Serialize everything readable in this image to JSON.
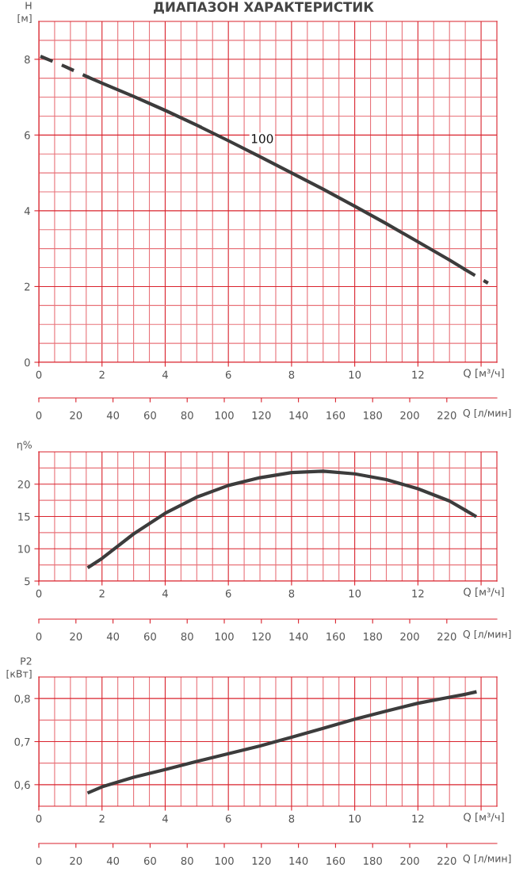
{
  "chart_data": [
    {
      "type": "line",
      "title": "ДИАПАЗОН ХАРАКТЕРИСТИК",
      "ylabel": "H\n[м]",
      "xlabel": "Q [м³/ч]",
      "x2label": "Q [л/мин]",
      "xlim": [
        0,
        14.5
      ],
      "xticks": [
        0,
        {
          "value": 0.5,
          "label": null
        },
        {
          "value": 1,
          "label": null
        },
        {
          "value": 1.5,
          "label": null
        },
        2,
        {
          "value": 2.5,
          "label": null
        },
        {
          "value": 3,
          "label": null
        },
        {
          "value": 3.5,
          "label": null
        },
        4,
        {
          "value": 4.5,
          "label": null
        },
        {
          "value": 5,
          "label": null
        },
        {
          "value": 5.5,
          "label": null
        },
        6,
        {
          "value": 6.5,
          "label": null
        },
        {
          "value": 7,
          "label": null
        },
        {
          "value": 7.5,
          "label": null
        },
        8,
        {
          "value": 8.5,
          "label": null
        },
        {
          "value": 9,
          "label": null
        },
        {
          "value": 9.5,
          "label": null
        },
        10,
        {
          "value": 10.5,
          "label": null
        },
        {
          "value": 11,
          "label": null
        },
        {
          "value": 11.5,
          "label": null
        },
        12,
        {
          "value": 12.5,
          "label": null
        },
        {
          "value": 13,
          "label": null
        },
        {
          "value": 13.5,
          "label": null
        },
        {
          "value": 14,
          "label": null
        }
      ],
      "x2lim": [
        0,
        247
      ],
      "x2ticks": [
        0,
        20,
        40,
        60,
        80,
        100,
        120,
        140,
        160,
        180,
        200,
        220
      ],
      "ylim": [
        0,
        9
      ],
      "yticks": [
        0,
        {
          "value": 0.5,
          "label": null
        },
        {
          "value": 1,
          "label": null
        },
        {
          "value": 1.5,
          "label": null
        },
        2,
        {
          "value": 2.5,
          "label": null
        },
        {
          "value": 3,
          "label": null
        },
        {
          "value": 3.5,
          "label": null
        },
        4,
        {
          "value": 4.5,
          "label": null
        },
        {
          "value": 5,
          "label": null
        },
        {
          "value": 5.5,
          "label": null
        },
        6,
        {
          "value": 6.5,
          "label": null
        },
        {
          "value": 7,
          "label": null
        },
        {
          "value": 7.5,
          "label": null
        },
        8,
        {
          "value": 8.5,
          "label": null
        }
      ],
      "grid": true,
      "series": [
        {
          "color": "#3c3c3c",
          "line_style": "dashed",
          "x": [
            0.05,
            0.8,
            1.58
          ],
          "values": [
            8.08,
            7.82,
            7.52
          ]
        },
        {
          "name": "100",
          "color": "#3c3c3c",
          "line_style": "solid",
          "x": [
            1.58,
            2,
            3,
            4,
            5,
            6,
            7,
            8,
            9,
            10,
            11,
            12,
            13,
            13.45
          ],
          "values": [
            7.52,
            7.37,
            7.02,
            6.65,
            6.26,
            5.85,
            5.43,
            5.0,
            4.57,
            4.12,
            3.66,
            3.18,
            2.7,
            2.47
          ]
        },
        {
          "color": "#3c3c3c",
          "line_style": "dashed",
          "x": [
            13.45,
            13.85,
            14.22
          ],
          "values": [
            2.47,
            2.27,
            2.09
          ]
        }
      ]
    },
    {
      "type": "line",
      "ylabel": "η%",
      "xlabel": "Q [м³/ч]",
      "x2label": "Q [л/мин]",
      "xlim": [
        0,
        14.5
      ],
      "xticks": [
        0,
        {
          "value": 0.5,
          "label": null
        },
        {
          "value": 1,
          "label": null
        },
        {
          "value": 1.5,
          "label": null
        },
        2,
        {
          "value": 2.5,
          "label": null
        },
        {
          "value": 3,
          "label": null
        },
        {
          "value": 3.5,
          "label": null
        },
        4,
        {
          "value": 4.5,
          "label": null
        },
        {
          "value": 5,
          "label": null
        },
        {
          "value": 5.5,
          "label": null
        },
        6,
        {
          "value": 6.5,
          "label": null
        },
        {
          "value": 7,
          "label": null
        },
        {
          "value": 7.5,
          "label": null
        },
        8,
        {
          "value": 8.5,
          "label": null
        },
        {
          "value": 9,
          "label": null
        },
        {
          "value": 9.5,
          "label": null
        },
        10,
        {
          "value": 10.5,
          "label": null
        },
        {
          "value": 11,
          "label": null
        },
        {
          "value": 11.5,
          "label": null
        },
        12,
        {
          "value": 12.5,
          "label": null
        },
        {
          "value": 13,
          "label": null
        },
        {
          "value": 13.5,
          "label": null
        },
        {
          "value": 14,
          "label": null
        }
      ],
      "x2lim": [
        0,
        247
      ],
      "x2ticks": [
        0,
        20,
        40,
        60,
        80,
        100,
        120,
        140,
        160,
        180,
        200,
        220
      ],
      "ylim": [
        5,
        25
      ],
      "yticks": [
        5,
        {
          "value": 7.5,
          "label": null
        },
        10,
        {
          "value": 12.5,
          "label": null
        },
        15,
        {
          "value": 17.5,
          "label": null
        },
        20,
        {
          "value": 22.5,
          "label": null
        }
      ],
      "grid": true,
      "series": [
        {
          "color": "#3c3c3c",
          "line_style": "solid",
          "x": [
            1.59,
            2,
            3,
            4,
            5,
            6,
            7,
            8,
            9,
            10,
            11,
            12,
            13,
            13.49
          ],
          "values": [
            7.2,
            8.5,
            12.3,
            15.5,
            18.0,
            19.8,
            21.0,
            21.8,
            22.0,
            21.6,
            20.7,
            19.3,
            17.4,
            16.0
          ]
        },
        {
          "color": "#3c3c3c",
          "line_style": "dashed",
          "x": [
            13.49,
            13.94
          ],
          "values": [
            16.0,
            14.7
          ]
        }
      ]
    },
    {
      "type": "line",
      "ylabel": "P2\n[кВт]",
      "xlabel": "Q [м³/ч]",
      "x2label": "Q [л/мин]",
      "xlim": [
        0,
        14.5
      ],
      "xticks": [
        0,
        {
          "value": 0.5,
          "label": null
        },
        {
          "value": 1,
          "label": null
        },
        {
          "value": 1.5,
          "label": null
        },
        2,
        {
          "value": 2.5,
          "label": null
        },
        {
          "value": 3,
          "label": null
        },
        {
          "value": 3.5,
          "label": null
        },
        4,
        {
          "value": 4.5,
          "label": null
        },
        {
          "value": 5,
          "label": null
        },
        {
          "value": 5.5,
          "label": null
        },
        6,
        {
          "value": 6.5,
          "label": null
        },
        {
          "value": 7,
          "label": null
        },
        {
          "value": 7.5,
          "label": null
        },
        8,
        {
          "value": 8.5,
          "label": null
        },
        {
          "value": 9,
          "label": null
        },
        {
          "value": 9.5,
          "label": null
        },
        10,
        {
          "value": 10.5,
          "label": null
        },
        {
          "value": 11,
          "label": null
        },
        {
          "value": 11.5,
          "label": null
        },
        12,
        {
          "value": 12.5,
          "label": null
        },
        {
          "value": 13,
          "label": null
        },
        {
          "value": 13.5,
          "label": null
        },
        {
          "value": 14,
          "label": null
        }
      ],
      "x2lim": [
        0,
        247
      ],
      "x2ticks": [
        0,
        20,
        40,
        60,
        80,
        100,
        120,
        140,
        160,
        180,
        200,
        220
      ],
      "ylim": [
        0.55,
        0.85
      ],
      "yticks": [
        {
          "value": 0.6,
          "label": "0,6"
        },
        {
          "value": 0.65,
          "label": null
        },
        {
          "value": 0.7,
          "label": "0,7"
        },
        {
          "value": 0.75,
          "label": null
        },
        {
          "value": 0.8,
          "label": "0,8"
        }
      ],
      "grid": true,
      "series": [
        {
          "color": "#3c3c3c",
          "line_style": "solid",
          "x": [
            1.59,
            2,
            3,
            4,
            5,
            6,
            7,
            8,
            9,
            10,
            11,
            12,
            13,
            13.45
          ],
          "values": [
            0.582,
            0.595,
            0.617,
            0.635,
            0.654,
            0.672,
            0.69,
            0.71,
            0.731,
            0.752,
            0.771,
            0.789,
            0.803,
            0.809
          ]
        },
        {
          "color": "#3c3c3c",
          "line_style": "dashed",
          "x": [
            13.45,
            13.94
          ],
          "values": [
            0.809,
            0.817
          ]
        }
      ]
    }
  ]
}
